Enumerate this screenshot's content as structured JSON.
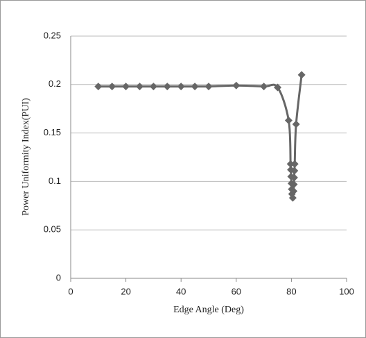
{
  "chart_data": {
    "type": "scatter-line",
    "x_label": "Edge Angle (Deg)",
    "y_label": "Power Uniformity Index(PUI)",
    "series": [
      {
        "color": "#666666",
        "x": [
          10,
          15,
          20,
          25,
          30,
          35,
          40,
          45,
          50,
          60,
          70,
          75,
          79,
          79.7,
          79.8,
          79.9,
          80,
          80.1,
          80.2,
          80.5,
          80.8,
          80.9,
          81,
          81.1,
          81.2,
          81.7,
          83.7
        ],
        "values": [
          0.198,
          0.198,
          0.198,
          0.198,
          0.198,
          0.198,
          0.198,
          0.198,
          0.198,
          0.199,
          0.198,
          0.197,
          0.163,
          0.118,
          0.112,
          0.105,
          0.098,
          0.092,
          0.087,
          0.083,
          0.09,
          0.097,
          0.104,
          0.111,
          0.118,
          0.159,
          0.21
        ]
      }
    ],
    "xlim": [
      0,
      100
    ],
    "xticks": [
      0,
      20,
      40,
      60,
      80,
      100
    ],
    "ylim": [
      0,
      0.25
    ],
    "yticks": [
      0,
      0.05,
      0.1,
      0.15,
      0.2,
      0.25
    ],
    "grid": true
  }
}
